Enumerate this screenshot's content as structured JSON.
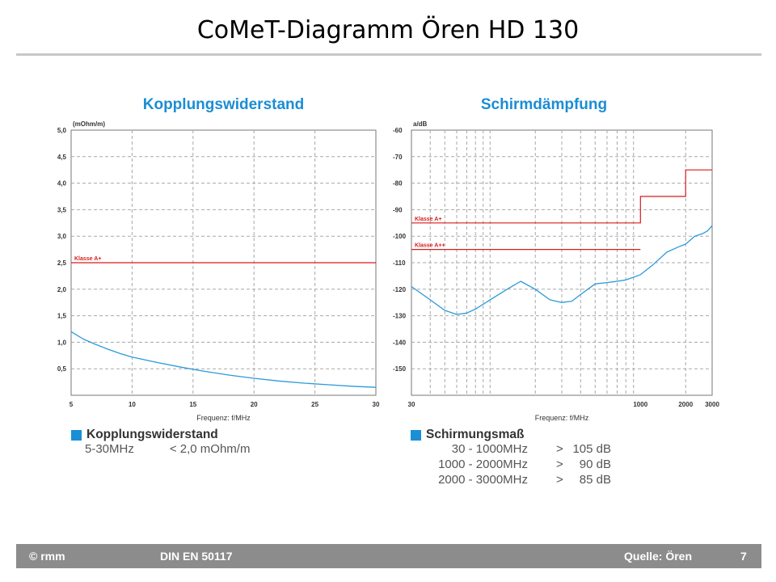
{
  "slide": {
    "title": "CoMeT-Diagramm Ören HD 130"
  },
  "footer": {
    "left": "© rmm",
    "center": "DIN EN 50117",
    "source": "Quelle: Ören",
    "page": "7"
  },
  "legend_left": {
    "title": "Kopplungswiderstand",
    "rows": [
      [
        "5-30MHz",
        "< 2,0 mOhm/m"
      ]
    ]
  },
  "legend_right": {
    "title": "Schirmungsmaß",
    "rows": [
      [
        "30 - 1000MHz",
        ">",
        "105 dB"
      ],
      [
        "1000 - 2000MHz",
        ">",
        "90 dB"
      ],
      [
        "2000 - 3000MHz",
        ">",
        "85 dB"
      ]
    ]
  },
  "colors": {
    "title_blue": "#1b8dd4",
    "curve": "#2b9ad9",
    "limit": "#d81c1c",
    "grid": "#a8a8a8"
  },
  "chart_data": [
    {
      "type": "line",
      "title": "Kopplungswiderstand",
      "ylabel": "(mOhm/m)",
      "xlabel": "Frequenz: f/MHz",
      "xlim": [
        5,
        30
      ],
      "ylim": [
        0,
        5
      ],
      "xticks": [
        5,
        10,
        15,
        20,
        25,
        30
      ],
      "xtick_labels": [
        "5",
        "10",
        "15",
        "20",
        "25",
        "30"
      ],
      "yticks": [
        0.5,
        1.0,
        1.5,
        2.0,
        2.5,
        3.0,
        3.5,
        4.0,
        4.5,
        5.0
      ],
      "ytick_labels": [
        "0,5",
        "1,0",
        "1,5",
        "2,0",
        "2,5",
        "3,0",
        "3,5",
        "4,0",
        "4,5",
        "5,0"
      ],
      "series": [
        {
          "name": "Kopplungswiderstand",
          "x": [
            5,
            6,
            7,
            8,
            9,
            10,
            12,
            14,
            16,
            18,
            20,
            22,
            24,
            26,
            28,
            30
          ],
          "y": [
            1.2,
            1.06,
            0.96,
            0.87,
            0.79,
            0.72,
            0.62,
            0.53,
            0.45,
            0.38,
            0.32,
            0.27,
            0.23,
            0.2,
            0.17,
            0.15
          ]
        }
      ],
      "limits": [
        {
          "label": "Klasse A+",
          "x": [
            5,
            30
          ],
          "y": [
            2.5,
            2.5
          ]
        }
      ]
    },
    {
      "type": "line",
      "title": "Schirmdämpfung",
      "ylabel": "a/dB",
      "xlabel": "Frequenz: f/MHz",
      "xscale": "log",
      "xlim": [
        30,
        3000
      ],
      "ylim": [
        -160,
        -60
      ],
      "xticks": [
        30,
        1000,
        2000,
        3000
      ],
      "xtick_labels": [
        "30",
        "1000",
        "2000",
        "3000"
      ],
      "yticks": [
        -60,
        -70,
        -80,
        -90,
        -100,
        -110,
        -120,
        -130,
        -140,
        -150
      ],
      "ytick_labels": [
        "-60",
        "-70",
        "-80",
        "-90",
        "-100",
        "-110",
        "-120",
        "-130",
        "-140",
        "-150"
      ],
      "series": [
        {
          "name": "Schirmungsmaß",
          "x": [
            30,
            40,
            50,
            60,
            70,
            80,
            100,
            130,
            160,
            200,
            250,
            300,
            350,
            400,
            500,
            600,
            700,
            800,
            900,
            1000,
            1200,
            1500,
            1800,
            2000,
            2300,
            2600,
            2800,
            3000
          ],
          "y": [
            -119,
            -124,
            -128,
            -129.5,
            -129,
            -127.5,
            -124,
            -120,
            -117,
            -120,
            -124,
            -125,
            -124.5,
            -122,
            -118,
            -117.5,
            -117,
            -116.5,
            -115.5,
            -114.5,
            -111,
            -106,
            -104,
            -103,
            -100,
            -99,
            -98,
            -96
          ]
        }
      ],
      "limits": [
        {
          "label": "Klasse A+",
          "x": [
            30,
            1000,
            1000,
            2000,
            2000,
            3000
          ],
          "y": [
            -95,
            -95,
            -85,
            -85,
            -75,
            -75
          ]
        },
        {
          "label": "Klasse A++",
          "x": [
            30,
            1000
          ],
          "y": [
            -105,
            -105
          ]
        }
      ]
    }
  ]
}
